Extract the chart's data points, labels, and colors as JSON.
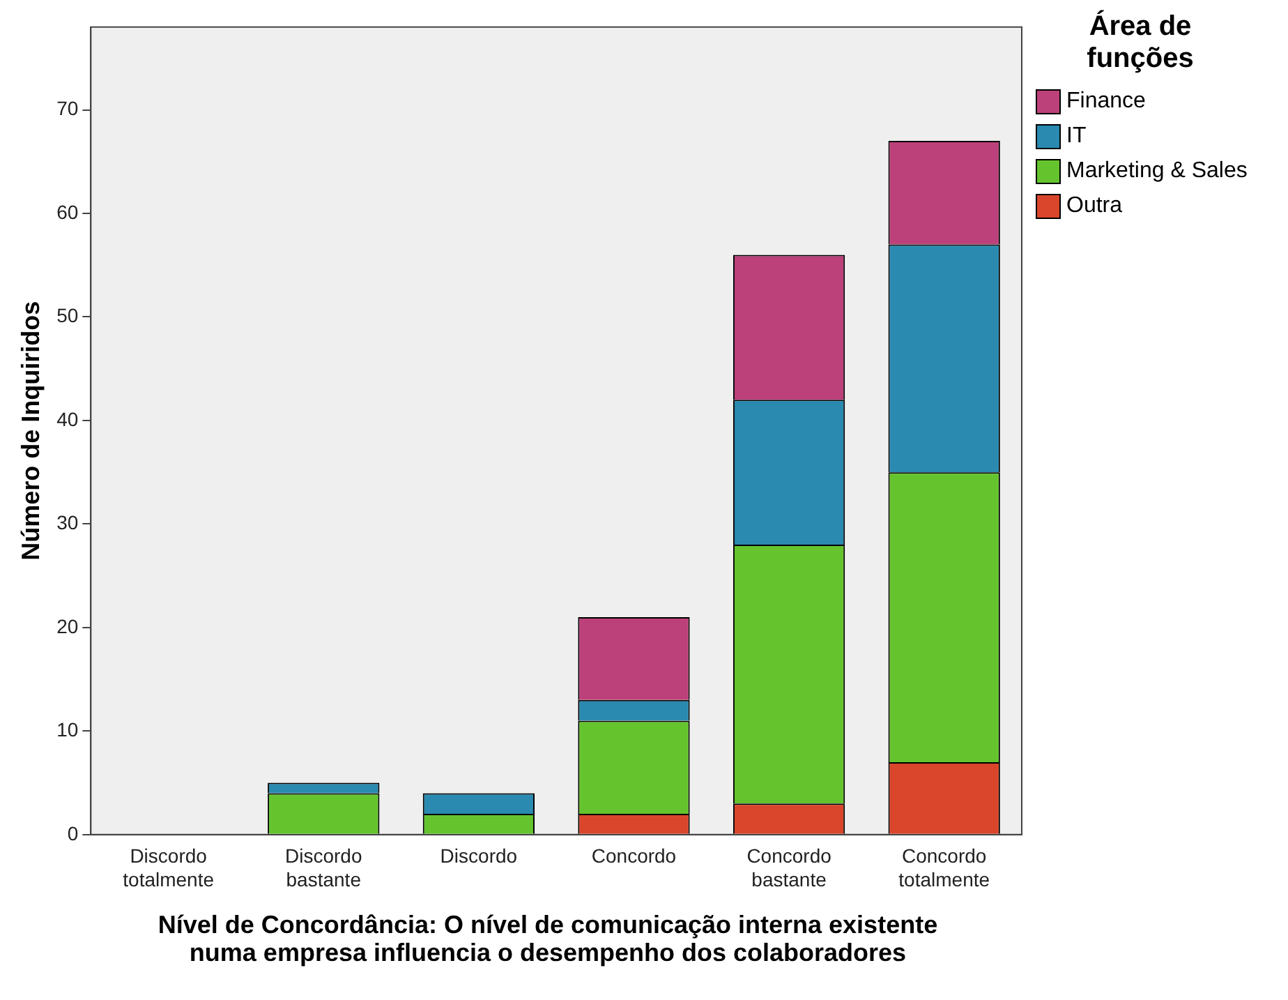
{
  "chart_data": {
    "type": "bar",
    "stacked": true,
    "xlabel": "Nível de Concordância: O nível de comunicação interna existente numa empresa influencia o desempenho dos colaboradores",
    "ylabel": "Número de Inquiridos",
    "legend_title": "Área de funções",
    "legend": "top right",
    "categories": [
      "Discordo totalmente",
      "Discordo bastante",
      "Discordo",
      "Concordo",
      "Concordo bastante",
      "Concordo totalmente"
    ],
    "series": [
      {
        "name": "Outra",
        "color": "#d9462c",
        "values": [
          0,
          0,
          0,
          2,
          3,
          7
        ]
      },
      {
        "name": "Marketing & Sales",
        "color": "#65c42e",
        "values": [
          0,
          4,
          2,
          9,
          25,
          28
        ]
      },
      {
        "name": "IT",
        "color": "#2a8ab0",
        "values": [
          0,
          1,
          2,
          2,
          14,
          22
        ]
      },
      {
        "name": "Finance",
        "color": "#bc417a",
        "values": [
          0,
          0,
          0,
          8,
          14,
          10
        ]
      }
    ],
    "ylim": [
      0,
      78
    ],
    "yticks": [
      0,
      10,
      20,
      30,
      40,
      50,
      60,
      70
    ],
    "grid": false
  }
}
